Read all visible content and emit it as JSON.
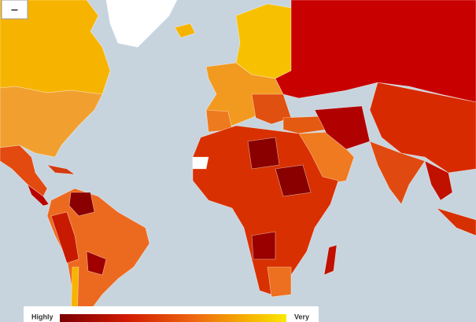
{
  "zoom_button": {
    "label": "–"
  },
  "legend": {
    "low_label": "Highly",
    "high_label": "Very"
  }
}
